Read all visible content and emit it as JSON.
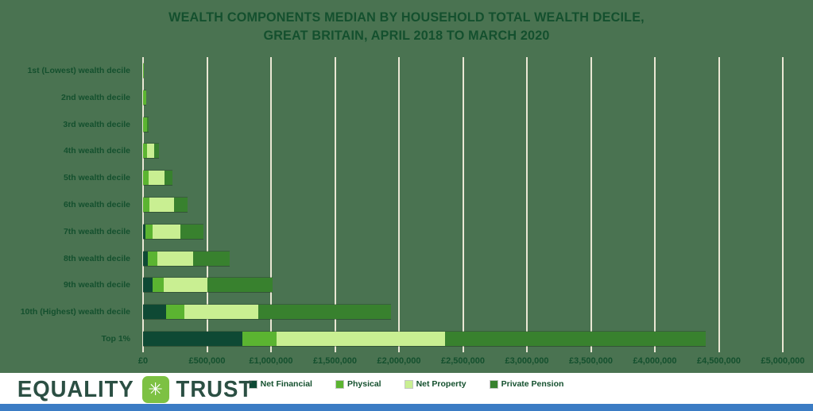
{
  "title": {
    "line1": "WEALTH COMPONENTS MEDIAN BY HOUSEHOLD TOTAL WEALTH DECILE,",
    "line2": "GREAT BRITAIN, APRIL 2018 TO MARCH 2020"
  },
  "colors": {
    "background": "#4a7351",
    "gridline": "#eae7d4",
    "text": "#14502e",
    "net_financial": "#0e4934",
    "physical": "#5bb431",
    "net_property": "#c9ef92",
    "private_pension": "#38812e",
    "logo_text": "#2b4f43",
    "logo_icon": "#7dc143",
    "bottom_strip": "#3b7cc4"
  },
  "chart_data": {
    "type": "bar",
    "orientation": "horizontal",
    "stacked": true,
    "title": "Wealth components median by household total wealth decile, Great Britain, April 2018 to March 2020",
    "categories": [
      "1st (Lowest) wealth decile",
      "2nd wealth decile",
      "3rd wealth decile",
      "4th wealth decile",
      "5th wealth decile",
      "6th wealth decile",
      "7th wealth decile",
      "8th wealth decile",
      "9th wealth decile",
      "10th (Highest) wealth decile",
      "Top 1%"
    ],
    "series": [
      {
        "name": "Net Financial",
        "color": "#0e4934",
        "values": [
          0,
          0,
          0,
          0,
          0,
          0,
          20000,
          35000,
          75000,
          180000,
          775000
        ]
      },
      {
        "name": "Physical",
        "color": "#5bb431",
        "values": [
          8000,
          25000,
          30000,
          30000,
          45000,
          50000,
          55000,
          75000,
          85000,
          145000,
          270000
        ]
      },
      {
        "name": "Net Property",
        "color": "#c9ef92",
        "values": [
          0,
          0,
          0,
          55000,
          120000,
          195000,
          220000,
          280000,
          345000,
          575000,
          1315000
        ]
      },
      {
        "name": "Private Pension",
        "color": "#38812e",
        "values": [
          0,
          0,
          12000,
          40000,
          62000,
          100000,
          180000,
          290000,
          510000,
          1035000,
          2035000
        ]
      }
    ],
    "x_tick_labels": [
      "£0",
      "£500,000",
      "£1,000,000",
      "£1,500,000",
      "£2,000,000",
      "£2,500,000",
      "£3,000,000",
      "£3,500,000",
      "£4,000,000",
      "£4,500,000",
      "£5,000,000"
    ],
    "x_tick_values": [
      0,
      500000,
      1000000,
      1500000,
      2000000,
      2500000,
      3000000,
      3500000,
      4000000,
      4500000,
      5000000
    ],
    "xlim": [
      0,
      5000000
    ],
    "grid": "vertical",
    "legend_position": "bottom"
  },
  "footer": {
    "logo": {
      "word1": "EQUALITY",
      "word2": "TRUST",
      "icon_glyph": "✳"
    }
  }
}
